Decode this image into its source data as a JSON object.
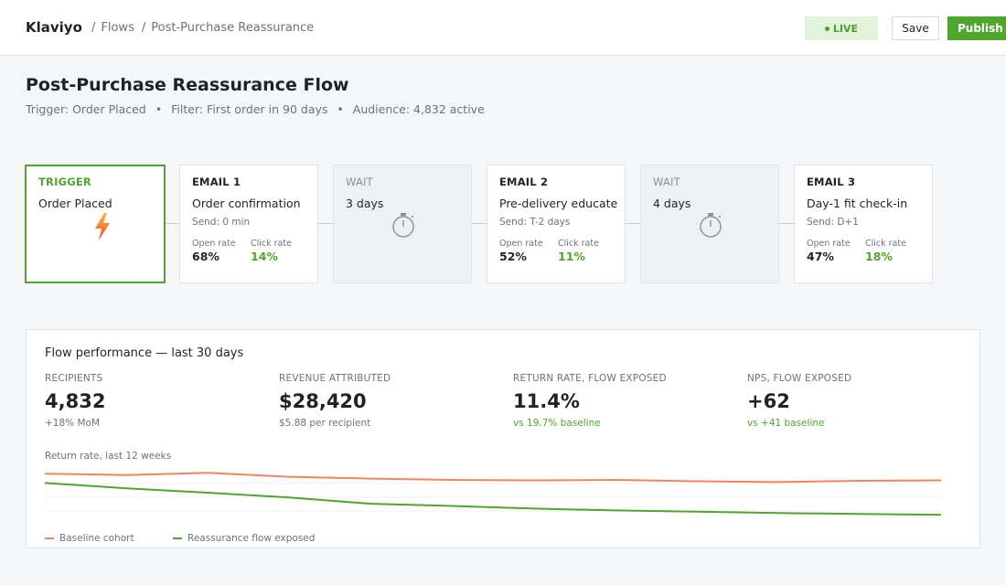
{
  "app": {
    "brand": "Klaviyo"
  },
  "breadcrumb": {
    "sep1": "/",
    "flows": "Flows",
    "sep2": "/",
    "current": "Post-Purchase Reassurance"
  },
  "status": {
    "badge": "LIVE"
  },
  "toolbar": {
    "save_label": "Save",
    "publish_label": "Publish"
  },
  "header": {
    "title": "Post-Purchase Reassurance Flow",
    "trigger": "Trigger: Order Placed",
    "filter": "Filter: First order in 90 days",
    "audience": "Audience: 4,832 active",
    "dot": "•"
  },
  "flow": {
    "trigger": {
      "kind": "TRIGGER",
      "title": "Order Placed",
      "icon": "lightning-icon"
    },
    "email1": {
      "kind": "EMAIL 1",
      "title": "Order confirmation",
      "send": "Send: 0 min",
      "open_label": "Open rate",
      "open": "68%",
      "click_label": "Click rate",
      "click": "14%"
    },
    "wait1": {
      "kind": "WAIT",
      "title": "3 days",
      "icon": "stopwatch-icon"
    },
    "email2": {
      "kind": "EMAIL 2",
      "title": "Pre-delivery educate",
      "send": "Send: T-2 days",
      "open_label": "Open rate",
      "open": "52%",
      "click_label": "Click rate",
      "click": "11%"
    },
    "wait2": {
      "kind": "WAIT",
      "title": "4 days",
      "icon": "stopwatch-icon"
    },
    "email3": {
      "kind": "EMAIL 3",
      "title": "Day-1 fit check-in",
      "send": "Send: D+1",
      "open_label": "Open rate",
      "open": "47%",
      "click_label": "Click rate",
      "click": "18%"
    }
  },
  "performance": {
    "title": "Flow performance — last 30 days",
    "kpis": [
      {
        "label": "RECIPIENTS",
        "value": "4,832",
        "sub": "+18% MoM"
      },
      {
        "label": "REVENUE ATTRIBUTED",
        "value": "$28,420",
        "sub": "$5.88 per recipient"
      },
      {
        "label": "RETURN RATE, FLOW EXPOSED",
        "value": "11.4%",
        "sub": "vs 19.7% baseline"
      },
      {
        "label": "NPS, FLOW EXPOSED",
        "value": "+62",
        "sub": "vs +41 baseline"
      }
    ],
    "spark_title": "Return rate, last 12 weeks"
  },
  "colors": {
    "accent": "#4fa62c",
    "baseline": "#f0865c",
    "exposed": "#4fa62c"
  },
  "chart_data": {
    "type": "line",
    "x": [
      1,
      2,
      3,
      4,
      5,
      6,
      7,
      8,
      9,
      10,
      11,
      12
    ],
    "series": [
      {
        "name": "Baseline cohort",
        "values": [
          20.5,
          20.2,
          20.7,
          19.8,
          19.4,
          19.1,
          19.0,
          19.1,
          18.8,
          18.6,
          18.9,
          19.0
        ]
      },
      {
        "name": "Reassurance flow exposed",
        "values": [
          18.4,
          17.2,
          16.2,
          15.1,
          13.7,
          13.2,
          12.6,
          12.2,
          11.9,
          11.6,
          11.4,
          11.2
        ]
      }
    ],
    "ylim": [
      10,
      22
    ],
    "grid": true,
    "legend": "bottom-left"
  }
}
